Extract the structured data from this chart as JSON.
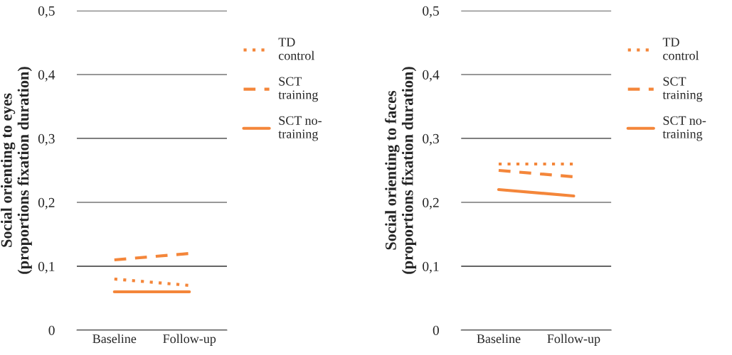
{
  "chart_data": [
    {
      "type": "line",
      "ylabel": "Social orienting to eyes\n(proportions fixation duration)",
      "categories": [
        "Baseline",
        "Follow-up"
      ],
      "series": [
        {
          "name": "TD\ncontrol",
          "color": "#f4863a",
          "values": [
            0.08,
            0.07
          ],
          "line_style": "dotted"
        },
        {
          "name": "SCT\ntraining",
          "color": "#f4863a",
          "values": [
            0.11,
            0.12
          ],
          "line_style": "dashed"
        },
        {
          "name": "SCT no-\ntraining",
          "color": "#f4863a",
          "values": [
            0.06,
            0.06
          ],
          "line_style": "solid"
        }
      ],
      "ylim": [
        0,
        0.5
      ],
      "yticks": [
        {
          "value": 0,
          "label": "0"
        },
        {
          "value": 0.1,
          "label": "0,1"
        },
        {
          "value": 0.2,
          "label": "0,2"
        },
        {
          "value": 0.3,
          "label": "0,3"
        },
        {
          "value": 0.4,
          "label": "0,4"
        },
        {
          "value": 0.5,
          "label": "0,5"
        }
      ],
      "grid": "y",
      "legend": "right"
    },
    {
      "type": "line",
      "ylabel": "Social orienting to faces\n(proportions fixation duration)",
      "categories": [
        "Baseline",
        "Follow-up"
      ],
      "series": [
        {
          "name": "TD\ncontrol",
          "color": "#f4863a",
          "values": [
            0.26,
            0.26
          ],
          "line_style": "dotted"
        },
        {
          "name": "SCT\ntraining",
          "color": "#f4863a",
          "values": [
            0.25,
            0.24
          ],
          "line_style": "dashed"
        },
        {
          "name": "SCT no-\ntraining",
          "color": "#f4863a",
          "values": [
            0.22,
            0.21
          ],
          "line_style": "solid"
        }
      ],
      "ylim": [
        0,
        0.5
      ],
      "yticks": [
        {
          "value": 0,
          "label": "0"
        },
        {
          "value": 0.1,
          "label": "0,1"
        },
        {
          "value": 0.2,
          "label": "0,2"
        },
        {
          "value": 0.3,
          "label": "0,3"
        },
        {
          "value": 0.4,
          "label": "0,4"
        },
        {
          "value": 0.5,
          "label": "0,5"
        }
      ],
      "grid": "y",
      "legend": "right"
    }
  ]
}
